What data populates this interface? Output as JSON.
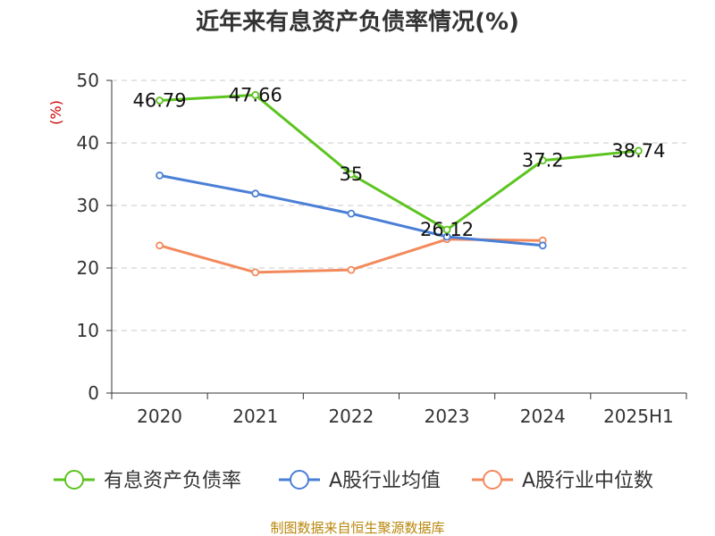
{
  "chart_data": {
    "type": "line",
    "title": "近年来有息资产负债率情况(%)",
    "ylabel": "(%)",
    "categories": [
      "2020",
      "2021",
      "2022",
      "2023",
      "2024",
      "2025H1"
    ],
    "ylim": [
      0,
      50
    ],
    "yticks": [
      0,
      10,
      20,
      30,
      40,
      50
    ],
    "grid": true,
    "legend_position": "bottom",
    "series": [
      {
        "name": "有息资产负债率",
        "color": "#5cc41f",
        "values": [
          46.79,
          47.66,
          35,
          26.12,
          37.2,
          38.74
        ],
        "labels": [
          "46.79",
          "47.66",
          "35",
          "26.12",
          "37.2",
          "38.74"
        ]
      },
      {
        "name": "A股行业均值",
        "color": "#4a7fd6",
        "values": [
          34.8,
          31.9,
          28.7,
          25.0,
          23.6,
          null
        ]
      },
      {
        "name": "A股行业中位数",
        "color": "#f28a5c",
        "values": [
          23.6,
          19.3,
          19.7,
          24.6,
          24.4,
          null
        ]
      }
    ]
  },
  "source": "制图数据来自恒生聚源数据库"
}
